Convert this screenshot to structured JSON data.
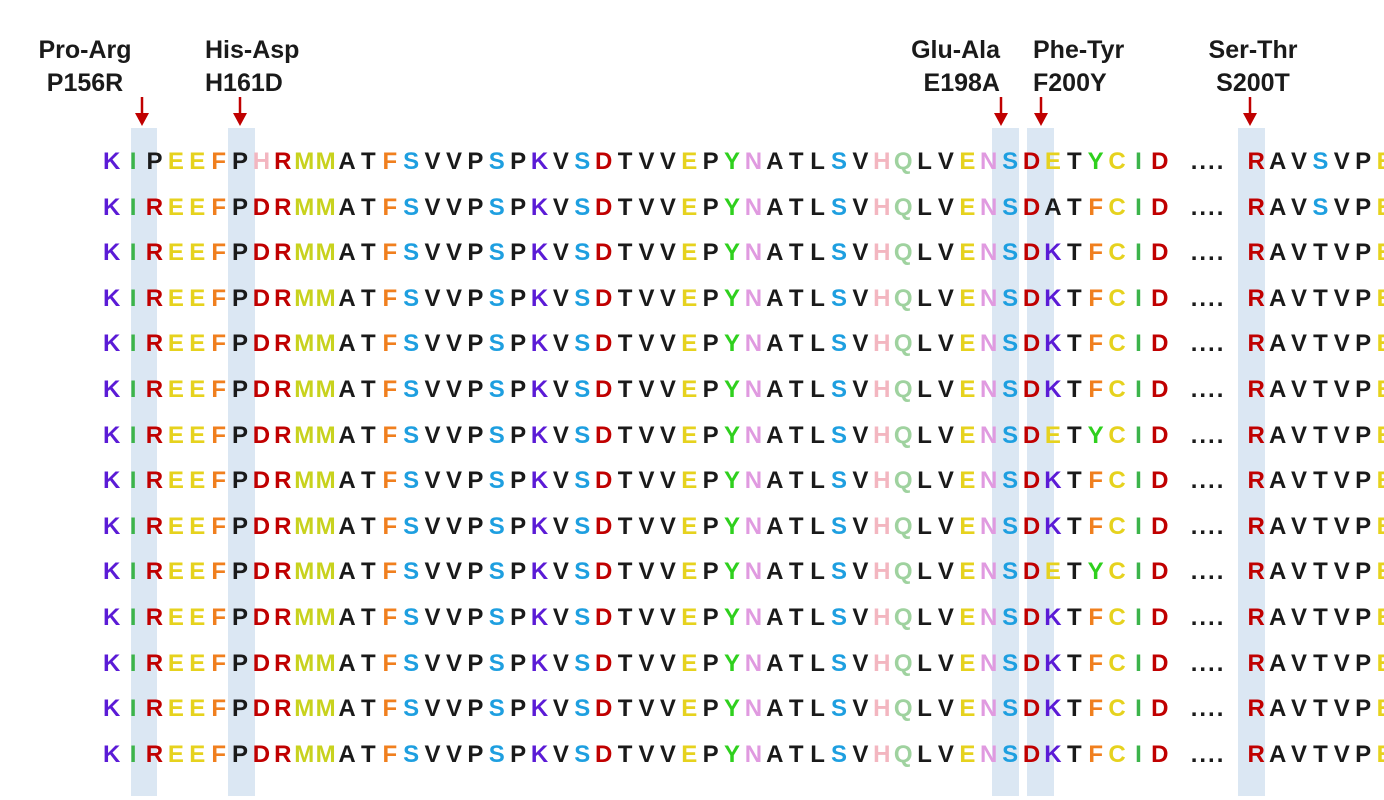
{
  "colors": {
    "highlight": "#dbe7f3",
    "arrow": "#c00000",
    "residue": {
      "K": "#5b1bd6",
      "I": "#3cb44b",
      "R": "#c00000",
      "E": "#e6d21e",
      "F": "#f07f1e",
      "P": "#1a1a1a",
      "D": "#c00000",
      "M": "#c8d21e",
      "A": "#1a1a1a",
      "T": "#1a1a1a",
      "S": "#1e9fe0",
      "V": "#1a1a1a",
      "Y": "#2fd01e",
      "N": "#e09ae0",
      "L": "#1a1a1a",
      "H": "#f3b6c0",
      "Q": "#9fd29f",
      "C": "#e6d21e"
    },
    "residue_overrides": {
      "H5": "#e09ae0",
      "K26": "#5b1bd6",
      "K12": "#7a3cc0"
    }
  },
  "mutations": [
    {
      "name": "Pro-Arg",
      "code": "P156R"
    },
    {
      "name": "His-Asp",
      "code": "H161D"
    },
    {
      "name": "Glu-Ala",
      "code": "E198A"
    },
    {
      "name": "Phe-Tyr",
      "code": "F200Y"
    },
    {
      "name": "Ser-Thr",
      "code": "S200T"
    }
  ],
  "separator": "....",
  "sequences": [
    {
      "left": "KIPEEFPHRMMATFSVVPSPKVSDTVVEPYNATLSVHQLVENSDETYCID",
      "right": "RAVSVPE"
    },
    {
      "left": "KIREEFPDRMMATFSVVPSPKVSDTVVEPYNATLSVHQLVENSDATFCID",
      "right": "RAVSVPE"
    },
    {
      "left": "KIREEFPDRMMATFSVVPSPKVSDTVVEPYNATLSVHQLVENSDKTFCID",
      "right": "RAVTVPE"
    },
    {
      "left": "KIREEFPDRMMATFSVVPSPKVSDTVVEPYNATLSVHQLVENSDKTFCID",
      "right": "RAVTVPE"
    },
    {
      "left": "KIREEFPDRMMATFSVVPSPKVSDTVVEPYNATLSVHQLVENSDKTFCID",
      "right": "RAVTVPE"
    },
    {
      "left": "KIREEFPDRMMATFSVVPSPKVSDTVVEPYNATLSVHQLVENSDKTFCID",
      "right": "RAVTVPE"
    },
    {
      "left": "KIREEFPDRMMATFSVVPSPKVSDTVVEPYNATLSVHQLVENSDETYCID",
      "right": "RAVTVPE"
    },
    {
      "left": "KIREEFPDRMMATFSVVPSPKVSDTVVEPYNATLSVHQLVENSDKTFCID",
      "right": "RAVTVPE"
    },
    {
      "left": "KIREEFPDRMMATFSVVPSPKVSDTVVEPYNATLSVHQLVENSDKTFCID",
      "right": "RAVTVPE"
    },
    {
      "left": "KIREEFPDRMMATFSVVPSPKVSDTVVEPYNATLSVHQLVENSDETYCID",
      "right": "RAVTVPE"
    },
    {
      "left": "KIREEFPDRMMATFSVVPSPKVSDTVVEPYNATLSVHQLVENSDKTFCID",
      "right": "RAVTVPE"
    },
    {
      "left": "KIREEFPDRMMATFSVVPSPKVSDTVVEPYNATLSVHQLVENSDKTFCID",
      "right": "RAVTVPE"
    },
    {
      "left": "KIREEFPDRMMATFSVVPSPKVSDTVVEPYNATLSVHQLVENSDKTFCID",
      "right": "RAVTVPE"
    },
    {
      "left": "KIREEFPDRMMATFSVVPSPKVSDTVVEPYNATLSVHQLVENSDKTFCID",
      "right": "RAVTVPE"
    }
  ]
}
